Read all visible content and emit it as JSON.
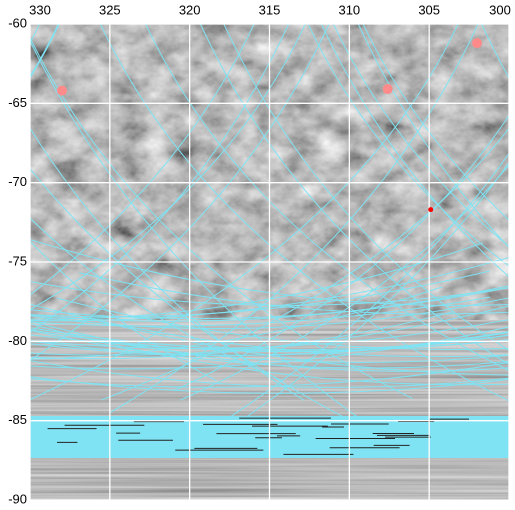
{
  "chart_data": {
    "type": "scatter",
    "xlim": [
      330,
      300
    ],
    "ylim": [
      -60,
      -90
    ],
    "xticks": [
      330,
      325,
      320,
      315,
      310,
      305,
      300
    ],
    "yticks": [
      -60,
      -65,
      -70,
      -75,
      -80,
      -85,
      -90
    ],
    "grid": true,
    "series": [
      {
        "color": "#ff8a8a",
        "x": [
          328.0,
          307.6,
          302.0
        ],
        "values": [
          -64.2,
          -64.1,
          -61.2
        ]
      },
      {
        "color": "#ff0000",
        "x": [
          304.9
        ],
        "values": [
          -71.7
        ]
      }
    ]
  }
}
